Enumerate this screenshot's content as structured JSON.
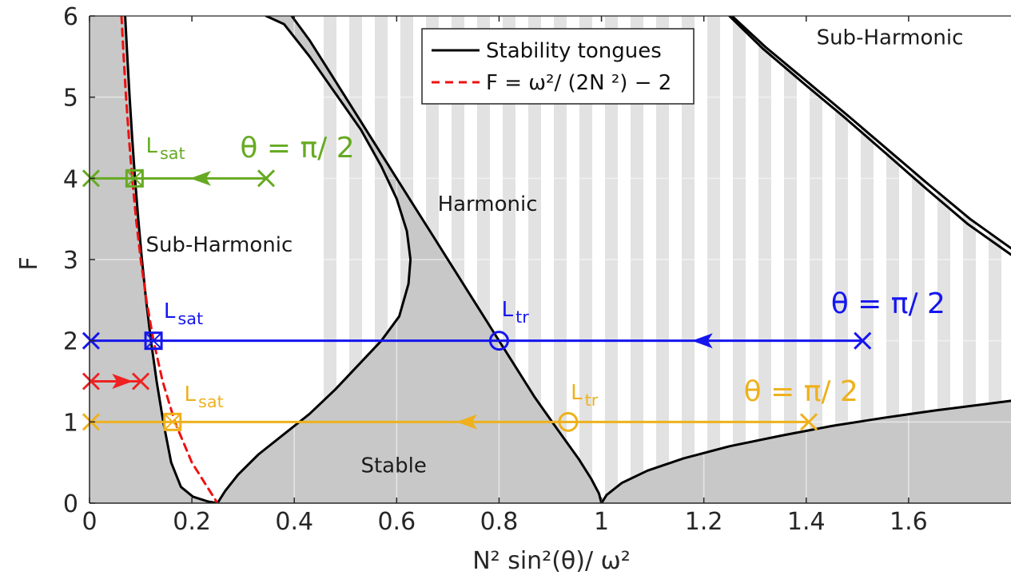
{
  "chart_data": {
    "type": "line",
    "title": "",
    "xlabel": "N² sin²(θ)/ ω²",
    "ylabel": "F",
    "xlim": [
      0,
      1.8
    ],
    "ylim": [
      0,
      6
    ],
    "x_ticks": [
      0,
      0.2,
      0.4,
      0.6,
      0.8,
      1,
      1.2,
      1.4,
      1.6
    ],
    "x_tick_labels": [
      "0",
      "0.2",
      "0.4",
      "0.6",
      "0.8",
      "1",
      "1.2",
      "1.4",
      "1.6"
    ],
    "y_ticks": [
      0,
      1,
      2,
      3,
      4,
      5,
      6
    ],
    "y_tick_labels": [
      "0",
      "1",
      "2",
      "3",
      "4",
      "5",
      "6"
    ],
    "grid": true,
    "colors": {
      "stable_fill": "#c8c8c8",
      "stripe": "#e2e2e2",
      "tongue": "#000000",
      "dashed": "#ee1111",
      "green": "#66aa22",
      "blue": "#1515ee",
      "orange": "#eeb11d",
      "red": "#ee2222"
    },
    "legend": {
      "placement": "top-center",
      "entries": [
        {
          "label": "Stability tongues",
          "style": "solid",
          "color": "#000000"
        },
        {
          "label": "F  = ω²/ (2N ²) − 2",
          "style": "dashed",
          "color": "#ee1111"
        }
      ]
    },
    "regions": [
      {
        "label": "Sub-Harmonic",
        "x": 0.11,
        "y": 3.1
      },
      {
        "label": "Harmonic",
        "x": 0.68,
        "y": 3.6
      },
      {
        "label": "Stable",
        "x": 0.53,
        "y": 0.38
      },
      {
        "label": "Sub-Harmonic",
        "x": 1.42,
        "y": 5.65
      }
    ],
    "series": [
      {
        "name": "Stability tongues",
        "role": "sub_left",
        "color": "#000000",
        "x": [
          0.0697,
          0.0738,
          0.0784,
          0.0833,
          0.0889,
          0.0952,
          0.1024,
          0.1106,
          0.12,
          0.1311,
          0.1441,
          0.1596,
          0.1786,
          0.202,
          0.2315,
          0.25
        ],
        "y": [
          6,
          5.5,
          5,
          4.5,
          4,
          3.5,
          3,
          2.5,
          2,
          1.5,
          1,
          0.5,
          0.2,
          0.08,
          0.02,
          0
        ]
      },
      {
        "name": "Stability tongues",
        "role": "sub_right",
        "color": "#000000",
        "x": [
          0.25,
          0.265,
          0.29,
          0.33,
          0.38,
          0.43,
          0.48,
          0.525,
          0.57,
          0.605,
          0.623,
          0.627,
          0.62,
          0.6,
          0.57,
          0.53,
          0.48,
          0.43,
          0.38,
          0.345
        ],
        "y": [
          0,
          0.15,
          0.35,
          0.6,
          0.85,
          1.1,
          1.4,
          1.7,
          2.0,
          2.3,
          2.7,
          3.0,
          3.35,
          3.75,
          4.15,
          4.6,
          5.05,
          5.5,
          5.9,
          6
        ]
      },
      {
        "name": "Stability tongues",
        "role": "harm_left",
        "color": "#000000",
        "x": [
          1.0,
          0.995,
          0.98,
          0.955,
          0.915,
          0.87,
          0.825,
          0.79,
          0.75,
          0.71,
          0.67,
          0.625,
          0.585,
          0.545,
          0.505,
          0.465,
          0.43,
          0.395
        ],
        "y": [
          0,
          0.12,
          0.3,
          0.55,
          0.9,
          1.3,
          1.75,
          2.1,
          2.5,
          2.9,
          3.3,
          3.75,
          4.15,
          4.55,
          4.95,
          5.35,
          5.7,
          6
        ]
      },
      {
        "name": "Stability tongues",
        "role": "harm_right",
        "color": "#000000",
        "x": [
          1.0,
          1.01,
          1.04,
          1.09,
          1.16,
          1.25,
          1.35,
          1.45,
          1.55,
          1.65,
          1.75,
          1.8
        ],
        "y": [
          0,
          0.1,
          0.25,
          0.4,
          0.55,
          0.7,
          0.83,
          0.95,
          1.05,
          1.14,
          1.22,
          1.26
        ]
      },
      {
        "name": "Stability tongues",
        "role": "sub2_a",
        "color": "#000000",
        "x": [
          1.255,
          1.32,
          1.4,
          1.48,
          1.56,
          1.64,
          1.72,
          1.8
        ],
        "y": [
          6,
          5.62,
          5.2,
          4.78,
          4.35,
          3.92,
          3.5,
          3.14
        ]
      },
      {
        "name": "Stability tongues",
        "role": "sub2_b",
        "color": "#000000",
        "x": [
          1.25,
          1.315,
          1.395,
          1.475,
          1.555,
          1.635,
          1.715,
          1.8
        ],
        "y": [
          6,
          5.6,
          5.17,
          4.75,
          4.31,
          3.87,
          3.44,
          3.06
        ]
      },
      {
        "name": "F  = ω²/ (2N ²) − 2",
        "role": "dashed",
        "color": "#ee1111",
        "x": [
          0.0625,
          0.0667,
          0.0714,
          0.0769,
          0.0833,
          0.0909,
          0.1,
          0.1111,
          0.125,
          0.1429,
          0.1667,
          0.2,
          0.25
        ],
        "y": [
          6,
          5.5,
          5,
          4.5,
          4,
          3.5,
          3,
          2.5,
          2,
          1.5,
          1,
          0.5,
          0
        ]
      }
    ],
    "trajectories": [
      {
        "id": "green",
        "color": "#66aa22",
        "y": 4,
        "x_start": 0.345,
        "x_end": 0.003,
        "arrow_x": 0.2,
        "sat_x": 0.088,
        "label": "θ = π/ 2",
        "sat_label": "L",
        "sat_sub": "sat"
      },
      {
        "id": "blue",
        "color": "#1515ee",
        "y": 2,
        "x_start": 1.51,
        "x_end": 0.003,
        "arrow_x": 1.18,
        "sat_x": 0.125,
        "tr_x": 0.8,
        "label": "θ = π/ 2",
        "sat_label": "L",
        "sat_sub": "sat",
        "tr_label": "L",
        "tr_sub": "tr"
      },
      {
        "id": "orange",
        "color": "#eeb11d",
        "y": 1,
        "x_start": 1.405,
        "x_end": 0.003,
        "arrow_x": 0.72,
        "sat_x": 0.162,
        "tr_x": 0.935,
        "label": "θ = π/ 2",
        "sat_label": "L",
        "sat_sub": "sat",
        "tr_label": "L",
        "tr_sub": "tr"
      },
      {
        "id": "red",
        "color": "#ee2222",
        "y": 1.5,
        "x_start": 0.003,
        "x_end": 0.1
      }
    ]
  }
}
